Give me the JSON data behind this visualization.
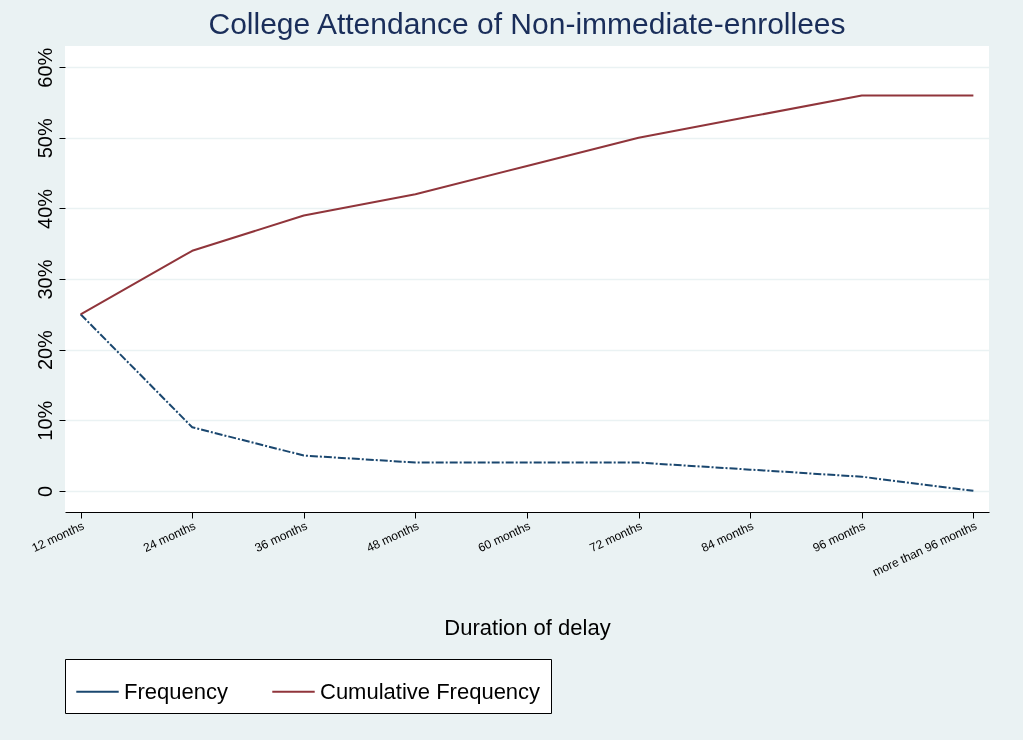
{
  "chart_data": {
    "type": "line",
    "title": "College Attendance of Non-immediate-enrollees",
    "xlabel": "Duration of delay",
    "categories": [
      "12 months",
      "24 months",
      "36 months",
      "48 months",
      "60 months",
      "72 months",
      "84 months",
      "96 months",
      "more than 96 months"
    ],
    "series": [
      {
        "name": "Frequency",
        "color": "#1a476f",
        "line_style": "dashed",
        "values": [
          25,
          9,
          5,
          4,
          4,
          4,
          3,
          2,
          0
        ]
      },
      {
        "name": "Cumulative Frequency",
        "color": "#90353b",
        "line_style": "solid",
        "values": [
          25,
          34,
          39,
          42,
          46,
          50,
          53,
          56,
          56
        ]
      }
    ],
    "ylim": [
      -3,
      63
    ],
    "yticks": [
      {
        "value": 0,
        "label": "0"
      },
      {
        "value": 10,
        "label": "10%"
      },
      {
        "value": 20,
        "label": "20%"
      },
      {
        "value": 30,
        "label": "30%"
      },
      {
        "value": 40,
        "label": "40%"
      },
      {
        "value": 50,
        "label": "50%"
      },
      {
        "value": 60,
        "label": "60%"
      }
    ],
    "grid": "y",
    "legend": "bottom",
    "marker": "none"
  }
}
